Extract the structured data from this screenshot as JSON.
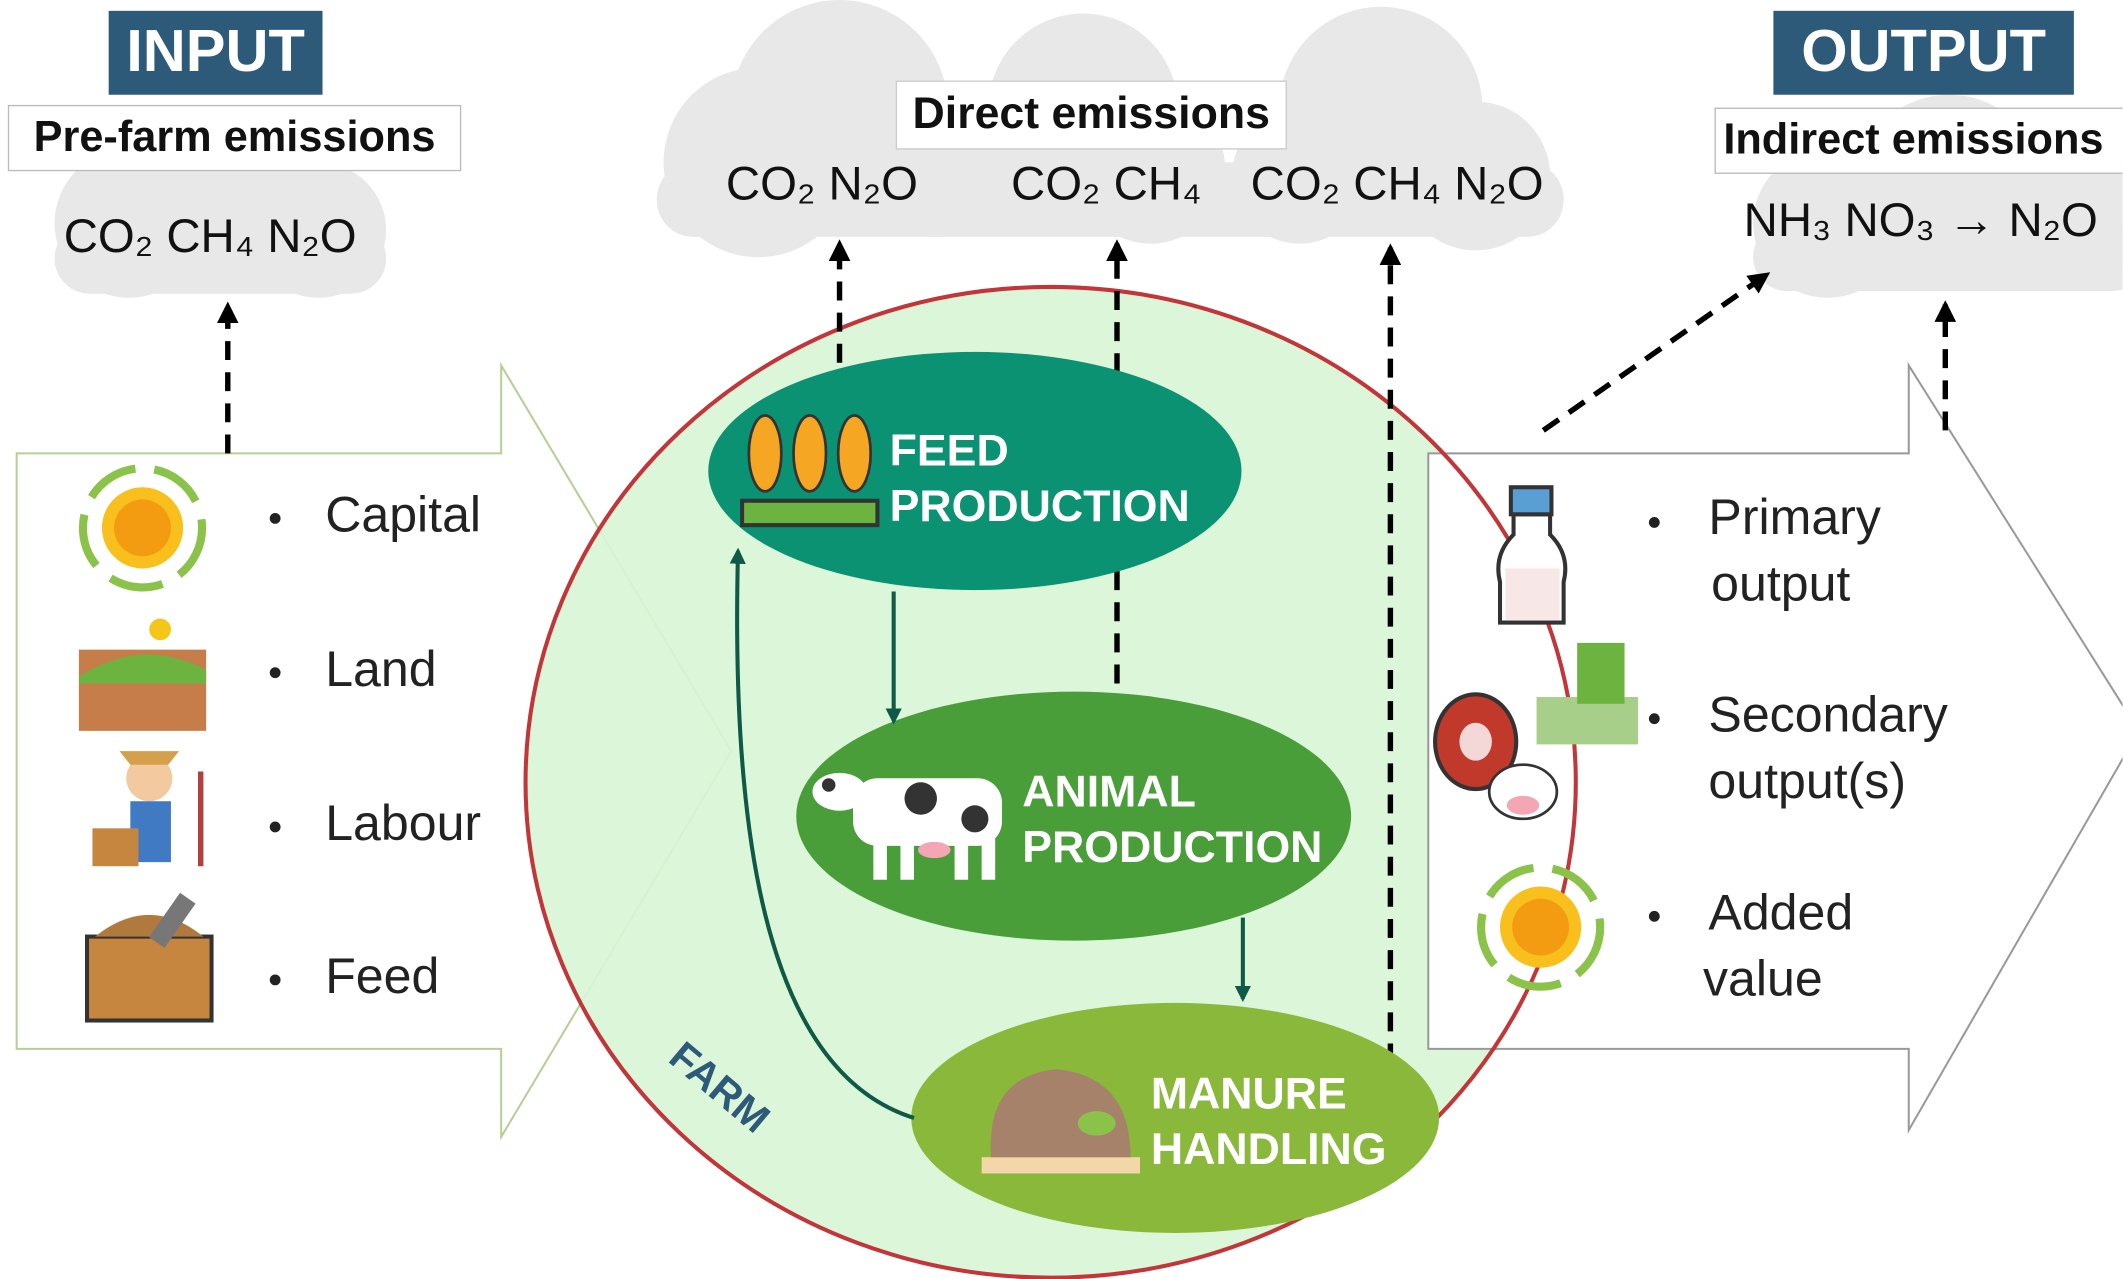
{
  "input": {
    "title": "INPUT",
    "subtitle": "Pre-farm emissions",
    "gases": "CO₂ CH₄ N₂O",
    "items": [
      "Capital",
      "Land",
      "Labour",
      "Feed"
    ]
  },
  "direct": {
    "title": "Direct emissions",
    "gases": [
      "CO₂ N₂O",
      "CO₂ CH₄",
      "CO₂ CH₄ N₂O"
    ]
  },
  "farm": {
    "label": "FARM",
    "nodes": [
      {
        "label": [
          "FEED",
          "PRODUCTION"
        ]
      },
      {
        "label": [
          "ANIMAL",
          "PRODUCTION"
        ]
      },
      {
        "label": [
          "MANURE",
          "HANDLING"
        ]
      }
    ]
  },
  "output": {
    "title": "OUTPUT",
    "subtitle": "Indirect emissions",
    "gases": "NH₃ NO₃ → N₂O",
    "items": [
      [
        "Primary",
        "output"
      ],
      [
        "Secondary",
        "output(s)"
      ],
      [
        "Added",
        "value"
      ]
    ]
  }
}
